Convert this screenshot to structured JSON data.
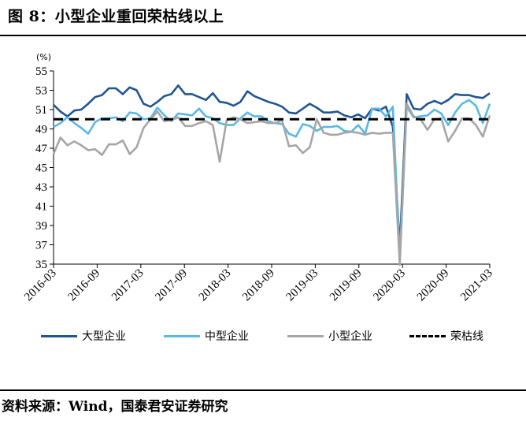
{
  "figure": {
    "title": "图 8：小型企业重回荣枯线以上",
    "source": "资料来源：Wind，国泰君安证券研究"
  },
  "chart_data": {
    "type": "line",
    "unit_label": "(%)",
    "ylim": [
      35,
      55
    ],
    "yticks": [
      35,
      37,
      39,
      41,
      43,
      45,
      47,
      49,
      51,
      53,
      55
    ],
    "x_start": "2016-03",
    "x_end": "2021-03",
    "xticks": [
      "2016-03",
      "2016-09",
      "2017-03",
      "2017-09",
      "2018-03",
      "2018-09",
      "2019-03",
      "2019-09",
      "2020-03",
      "2020-09",
      "2021-03"
    ],
    "legend_position": "bottom",
    "grid": false,
    "series": [
      {
        "name": "大型企业",
        "color": "#1f5592",
        "dashed": false,
        "values": [
          51.5,
          50.8,
          50.3,
          50.9,
          51.0,
          51.6,
          52.3,
          52.5,
          53.2,
          53.2,
          52.6,
          53.3,
          53.0,
          51.6,
          51.3,
          51.8,
          52.4,
          52.6,
          53.5,
          52.6,
          52.6,
          52.3,
          52.0,
          52.7,
          51.8,
          51.7,
          51.4,
          51.8,
          52.9,
          52.4,
          52.1,
          51.8,
          51.6,
          51.3,
          50.7,
          50.6,
          51.1,
          51.6,
          51.2,
          50.7,
          50.7,
          50.8,
          50.4,
          50.2,
          50.5,
          50.1,
          51.1,
          50.9,
          51.3,
          49.2,
          36.7,
          52.6,
          51.1,
          51.0,
          51.6,
          51.9,
          51.6,
          52.0,
          52.6,
          52.5,
          52.5,
          52.3,
          52.2,
          52.7
        ]
      },
      {
        "name": "中型企业",
        "color": "#5ab8e6",
        "dashed": false,
        "values": [
          49.2,
          49.6,
          50.2,
          49.6,
          49.1,
          48.5,
          49.7,
          50.1,
          50.1,
          50.2,
          49.8,
          50.7,
          50.6,
          50.0,
          50.1,
          51.2,
          50.4,
          49.8,
          50.6,
          50.5,
          50.4,
          51.1,
          50.3,
          50.1,
          49.6,
          49.4,
          49.4,
          50.1,
          50.7,
          50.3,
          50.3,
          49.8,
          49.6,
          49.5,
          48.5,
          48.2,
          49.5,
          49.3,
          48.8,
          49.2,
          49.2,
          49.3,
          48.8,
          48.7,
          49.4,
          48.5,
          51.1,
          51.1,
          50.3,
          51.3,
          35.5,
          51.3,
          50.2,
          50.3,
          50.4,
          51.0,
          50.6,
          49.4,
          50.7,
          51.6,
          52.0,
          51.4,
          49.6,
          51.6
        ]
      },
      {
        "name": "小型企业",
        "color": "#a6a6a6",
        "dashed": false,
        "values": [
          46.4,
          48.1,
          47.3,
          47.7,
          47.3,
          46.8,
          46.9,
          46.3,
          47.4,
          47.4,
          47.8,
          46.4,
          47.1,
          49.1,
          50.0,
          50.8,
          49.8,
          49.9,
          50.2,
          49.3,
          49.3,
          49.6,
          49.8,
          49.4,
          45.6,
          49.9,
          50.2,
          50.0,
          49.6,
          49.7,
          49.8,
          49.6,
          49.6,
          49.9,
          47.2,
          47.3,
          46.5,
          47.1,
          50.0,
          48.6,
          48.4,
          48.4,
          48.6,
          48.7,
          48.6,
          48.4,
          48.6,
          48.5,
          48.6,
          48.6,
          34.9,
          51.6,
          50.3,
          50.0,
          48.9,
          50.0,
          50.1,
          47.7,
          48.8,
          50.1,
          50.1,
          49.4,
          48.2,
          50.4
        ]
      },
      {
        "name": "荣枯线",
        "color": "#000000",
        "dashed": true,
        "values": [
          50,
          50
        ]
      }
    ]
  }
}
